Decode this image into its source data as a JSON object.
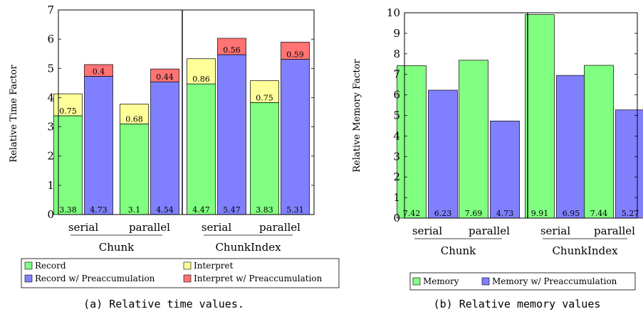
{
  "colors": {
    "record": "#80ff80",
    "record_pre": "#8080ff",
    "interpret": "#ffff99",
    "interpret_pre": "#ff7373",
    "memory": "#80ff80",
    "memory_pre": "#8080ff"
  },
  "chart_data": [
    {
      "type": "bar",
      "stacked": true,
      "caption": "(a) Relative time values.",
      "ylabel": "Relative Time Factor",
      "ylim": [
        0,
        7
      ],
      "yticks": [
        "0",
        "1",
        "2",
        "3",
        "4",
        "5",
        "6",
        "7"
      ],
      "groups": [
        {
          "label": "Chunk",
          "subgroups": [
            {
              "label": "serial",
              "bars": [
                {
                  "base": 3.38,
                  "top": 0.75,
                  "base_label": "3.38",
                  "top_label": "0.75",
                  "series": "plain"
                },
                {
                  "base": 4.73,
                  "top": 0.4,
                  "base_label": "4.73",
                  "top_label": "0.4",
                  "series": "pre"
                }
              ]
            },
            {
              "label": "parallel",
              "bars": [
                {
                  "base": 3.1,
                  "top": 0.68,
                  "base_label": "3.1",
                  "top_label": "0.68",
                  "series": "plain"
                },
                {
                  "base": 4.54,
                  "top": 0.44,
                  "base_label": "4.54",
                  "top_label": "0.44",
                  "series": "pre"
                }
              ]
            }
          ]
        },
        {
          "label": "ChunkIndex",
          "subgroups": [
            {
              "label": "serial",
              "bars": [
                {
                  "base": 4.47,
                  "top": 0.86,
                  "base_label": "4.47",
                  "top_label": "0.86",
                  "series": "plain"
                },
                {
                  "base": 5.47,
                  "top": 0.56,
                  "base_label": "5.47",
                  "top_label": "0.56",
                  "series": "pre"
                }
              ]
            },
            {
              "label": "parallel",
              "bars": [
                {
                  "base": 3.83,
                  "top": 0.75,
                  "base_label": "3.83",
                  "top_label": "0.75",
                  "series": "plain"
                },
                {
                  "base": 5.31,
                  "top": 0.59,
                  "base_label": "5.31",
                  "top_label": "0.59",
                  "series": "pre"
                }
              ]
            }
          ]
        }
      ],
      "legend": [
        {
          "label": "Record",
          "color_key": "record"
        },
        {
          "label": "Interpret",
          "color_key": "interpret"
        },
        {
          "label": "Record w/ Preaccumulation",
          "color_key": "record_pre"
        },
        {
          "label": "Interpret w/ Preaccumulation",
          "color_key": "interpret_pre"
        }
      ],
      "legend_position": "bottom"
    },
    {
      "type": "bar",
      "stacked": false,
      "caption": "(b) Relative memory values",
      "ylabel": "Relative Memory Factor",
      "ylim": [
        0,
        10
      ],
      "yticks": [
        "0",
        "1",
        "2",
        "3",
        "4",
        "5",
        "6",
        "7",
        "8",
        "9",
        "10"
      ],
      "groups": [
        {
          "label": "Chunk",
          "subgroups": [
            {
              "label": "serial",
              "bars": [
                {
                  "base": 7.42,
                  "base_label": "7.42",
                  "series": "plain"
                },
                {
                  "base": 6.23,
                  "base_label": "6.23",
                  "series": "pre"
                }
              ]
            },
            {
              "label": "parallel",
              "bars": [
                {
                  "base": 7.69,
                  "base_label": "7.69",
                  "series": "plain"
                },
                {
                  "base": 4.73,
                  "base_label": "4.73",
                  "series": "pre"
                }
              ]
            }
          ]
        },
        {
          "label": "ChunkIndex",
          "subgroups": [
            {
              "label": "serial",
              "bars": [
                {
                  "base": 9.91,
                  "base_label": "9.91",
                  "series": "plain"
                },
                {
                  "base": 6.95,
                  "base_label": "6.95",
                  "series": "pre"
                }
              ]
            },
            {
              "label": "parallel",
              "bars": [
                {
                  "base": 7.44,
                  "base_label": "7.44",
                  "series": "plain"
                },
                {
                  "base": 5.27,
                  "base_label": "5.27",
                  "series": "pre"
                }
              ]
            }
          ]
        }
      ],
      "legend": [
        {
          "label": "Memory",
          "color_key": "memory"
        },
        {
          "label": "Memory w/ Preaccumulation",
          "color_key": "memory_pre"
        }
      ],
      "legend_position": "bottom"
    }
  ]
}
